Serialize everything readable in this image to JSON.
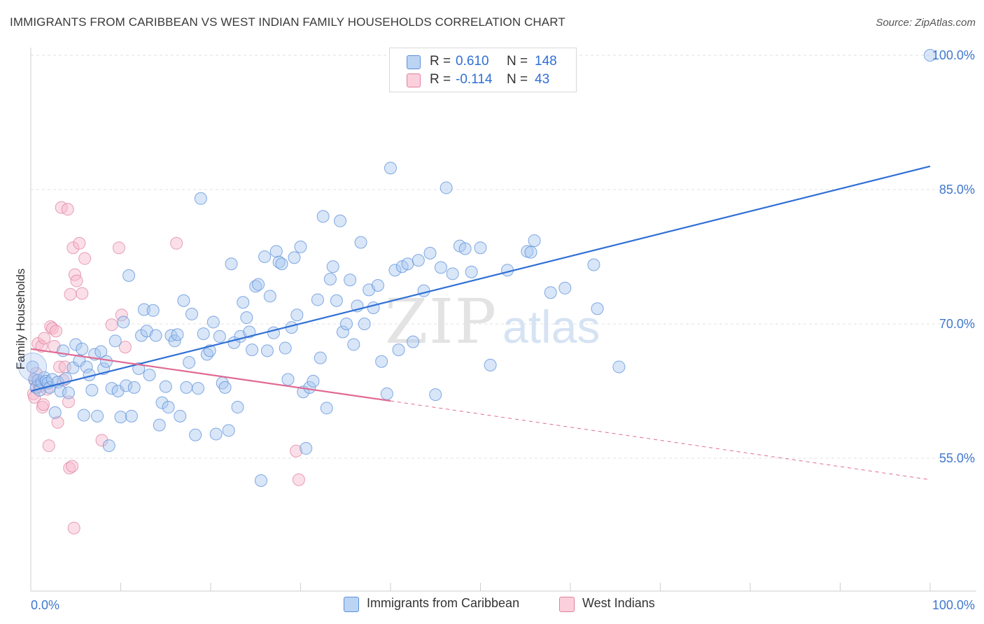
{
  "title": "IMMIGRANTS FROM CARIBBEAN VS WEST INDIAN FAMILY HOUSEHOLDS CORRELATION CHART",
  "source": "Source: ZipAtlas.com",
  "watermark": {
    "zip": "ZIP",
    "atlas": "atlas"
  },
  "legend": {
    "rows": [
      {
        "r_label": "R =",
        "r_value": "0.610",
        "n_label": "N =",
        "n_value": "148"
      },
      {
        "r_label": "R =",
        "r_value": "-0.114",
        "n_label": "N =",
        "n_value": "43"
      }
    ]
  },
  "colors": {
    "blue_fill": "#a9c7f0",
    "blue_stroke": "#5b8fd9",
    "blue_line": "#2f6fd6",
    "pink_fill": "#f6b9cb",
    "pink_stroke": "#e0819f",
    "pink_line": "#e06a93",
    "tick_label": "#3f78cf",
    "grid": "#e2e2e2"
  },
  "chart_data": {
    "type": "scatter",
    "title": "IMMIGRANTS FROM CARIBBEAN VS WEST INDIAN FAMILY HOUSEHOLDS CORRELATION CHART",
    "xlabel": "",
    "ylabel": "Family Households",
    "xlim": [
      0,
      100
    ],
    "ylim": [
      40,
      102
    ],
    "x_tick_labels": [
      "0.0%",
      "100.0%"
    ],
    "y_ticks": [
      55,
      70,
      85,
      100
    ],
    "y_tick_labels": [
      "55.0%",
      "70.0%",
      "85.0%",
      "100.0%"
    ],
    "grid": true,
    "legend_position": "top-center",
    "series": [
      {
        "name": "Immigrants from Caribbean",
        "color": "#a9c7f0",
        "trend": {
          "x": [
            0,
            100
          ],
          "y": [
            62.5,
            87.6
          ],
          "dashed_from": null
        },
        "points": [
          [
            0.2,
            65.2
          ],
          [
            0.4,
            63.8
          ],
          [
            0.6,
            62.9
          ],
          [
            0.8,
            63.7
          ],
          [
            1.0,
            62.6
          ],
          [
            1.2,
            63.5
          ],
          [
            1.5,
            64.0
          ],
          [
            1.7,
            63.6
          ],
          [
            1.9,
            63.4
          ],
          [
            2.1,
            62.9
          ],
          [
            2.4,
            63.8
          ],
          [
            2.7,
            60.1
          ],
          [
            3.0,
            63.5
          ],
          [
            3.3,
            62.5
          ],
          [
            3.6,
            67.0
          ],
          [
            3.9,
            63.9
          ],
          [
            4.2,
            62.3
          ],
          [
            4.7,
            65.1
          ],
          [
            5.0,
            67.7
          ],
          [
            5.4,
            65.9
          ],
          [
            5.7,
            67.2
          ],
          [
            5.9,
            59.8
          ],
          [
            6.2,
            65.2
          ],
          [
            6.5,
            64.3
          ],
          [
            6.8,
            62.6
          ],
          [
            7.1,
            66.6
          ],
          [
            7.4,
            59.7
          ],
          [
            7.8,
            66.9
          ],
          [
            8.1,
            65.0
          ],
          [
            8.4,
            65.8
          ],
          [
            8.7,
            56.4
          ],
          [
            9.0,
            62.8
          ],
          [
            9.4,
            68.1
          ],
          [
            9.7,
            62.5
          ],
          [
            10.0,
            59.6
          ],
          [
            10.3,
            70.2
          ],
          [
            10.6,
            63.1
          ],
          [
            10.9,
            75.4
          ],
          [
            11.2,
            59.7
          ],
          [
            11.5,
            62.9
          ],
          [
            12.0,
            65.0
          ],
          [
            12.3,
            68.7
          ],
          [
            12.6,
            71.6
          ],
          [
            12.9,
            69.2
          ],
          [
            13.2,
            64.3
          ],
          [
            13.6,
            71.5
          ],
          [
            13.9,
            68.7
          ],
          [
            14.3,
            58.7
          ],
          [
            14.6,
            61.2
          ],
          [
            15.0,
            63.0
          ],
          [
            15.3,
            60.7
          ],
          [
            15.6,
            68.7
          ],
          [
            16.0,
            68.1
          ],
          [
            16.3,
            68.8
          ],
          [
            16.6,
            59.7
          ],
          [
            17.0,
            72.6
          ],
          [
            17.3,
            62.9
          ],
          [
            17.6,
            65.7
          ],
          [
            17.9,
            71.1
          ],
          [
            18.3,
            57.6
          ],
          [
            18.6,
            62.8
          ],
          [
            18.9,
            84.0
          ],
          [
            19.2,
            68.9
          ],
          [
            19.6,
            66.6
          ],
          [
            19.9,
            67.0
          ],
          [
            20.3,
            70.2
          ],
          [
            20.6,
            57.7
          ],
          [
            21.0,
            68.6
          ],
          [
            21.3,
            63.4
          ],
          [
            21.6,
            62.9
          ],
          [
            22.0,
            58.1
          ],
          [
            22.3,
            76.7
          ],
          [
            22.6,
            67.9
          ],
          [
            23.0,
            60.7
          ],
          [
            23.3,
            68.6
          ],
          [
            23.6,
            72.4
          ],
          [
            24.0,
            70.7
          ],
          [
            24.3,
            69.1
          ],
          [
            24.6,
            67.1
          ],
          [
            25.0,
            74.2
          ],
          [
            25.3,
            74.4
          ],
          [
            25.6,
            52.5
          ],
          [
            26.0,
            77.5
          ],
          [
            26.3,
            67.0
          ],
          [
            26.6,
            73.1
          ],
          [
            27.0,
            69.0
          ],
          [
            27.3,
            78.1
          ],
          [
            27.6,
            76.9
          ],
          [
            27.9,
            76.7
          ],
          [
            28.3,
            67.3
          ],
          [
            28.6,
            63.8
          ],
          [
            29.0,
            69.6
          ],
          [
            29.3,
            77.4
          ],
          [
            29.6,
            71.0
          ],
          [
            30.0,
            78.6
          ],
          [
            30.3,
            62.4
          ],
          [
            30.6,
            56.1
          ],
          [
            31.0,
            62.9
          ],
          [
            31.4,
            63.6
          ],
          [
            31.9,
            72.7
          ],
          [
            32.2,
            66.2
          ],
          [
            32.5,
            82.0
          ],
          [
            32.9,
            60.6
          ],
          [
            33.3,
            75.0
          ],
          [
            33.6,
            76.4
          ],
          [
            34.0,
            72.6
          ],
          [
            34.4,
            81.5
          ],
          [
            34.7,
            69.1
          ],
          [
            35.1,
            70.0
          ],
          [
            35.5,
            74.9
          ],
          [
            35.9,
            67.7
          ],
          [
            36.3,
            72.0
          ],
          [
            36.7,
            79.1
          ],
          [
            37.1,
            70.0
          ],
          [
            37.6,
            73.8
          ],
          [
            38.1,
            71.8
          ],
          [
            38.6,
            74.3
          ],
          [
            39.0,
            65.8
          ],
          [
            39.6,
            62.2
          ],
          [
            40.0,
            87.4
          ],
          [
            40.5,
            76.0
          ],
          [
            40.9,
            67.1
          ],
          [
            41.3,
            76.4
          ],
          [
            41.9,
            76.7
          ],
          [
            42.5,
            68.0
          ],
          [
            43.1,
            77.1
          ],
          [
            43.7,
            73.7
          ],
          [
            44.4,
            77.9
          ],
          [
            45.0,
            62.1
          ],
          [
            45.6,
            76.3
          ],
          [
            46.2,
            85.2
          ],
          [
            46.9,
            75.6
          ],
          [
            47.7,
            78.7
          ],
          [
            48.3,
            78.4
          ],
          [
            49.0,
            75.8
          ],
          [
            50.0,
            78.5
          ],
          [
            51.1,
            65.4
          ],
          [
            53.0,
            76.0
          ],
          [
            55.2,
            78.1
          ],
          [
            55.6,
            78.0
          ],
          [
            56.0,
            79.3
          ],
          [
            57.8,
            73.5
          ],
          [
            59.4,
            74.0
          ],
          [
            62.6,
            76.6
          ],
          [
            63.0,
            71.7
          ],
          [
            65.4,
            65.2
          ],
          [
            100,
            100.0
          ]
        ]
      },
      {
        "name": "West Indians",
        "color": "#f6b9cb",
        "trend": {
          "x": [
            0,
            40
          ],
          "y": [
            67.2,
            61.4
          ],
          "dashed_from": 40,
          "x_end": 100,
          "y_end": 52.6
        },
        "points": [
          [
            0.3,
            62.2
          ],
          [
            0.4,
            61.8
          ],
          [
            0.5,
            63.6
          ],
          [
            0.6,
            64.5
          ],
          [
            0.8,
            67.8
          ],
          [
            1.0,
            63.0
          ],
          [
            1.2,
            67.5
          ],
          [
            1.3,
            60.7
          ],
          [
            1.4,
            61.0
          ],
          [
            1.5,
            68.4
          ],
          [
            1.8,
            62.7
          ],
          [
            2.0,
            56.4
          ],
          [
            2.2,
            69.7
          ],
          [
            2.4,
            69.5
          ],
          [
            2.6,
            67.5
          ],
          [
            2.8,
            69.2
          ],
          [
            3.0,
            59.0
          ],
          [
            3.2,
            65.2
          ],
          [
            3.4,
            83.0
          ],
          [
            3.6,
            63.7
          ],
          [
            3.8,
            65.2
          ],
          [
            4.1,
            82.8
          ],
          [
            4.2,
            61.3
          ],
          [
            4.3,
            53.9
          ],
          [
            4.4,
            73.3
          ],
          [
            4.6,
            54.1
          ],
          [
            4.7,
            78.5
          ],
          [
            4.8,
            47.2
          ],
          [
            4.9,
            75.5
          ],
          [
            5.1,
            74.8
          ],
          [
            5.4,
            79.0
          ],
          [
            5.7,
            73.4
          ],
          [
            6.0,
            77.3
          ],
          [
            7.9,
            57.0
          ],
          [
            9.0,
            69.9
          ],
          [
            9.8,
            78.5
          ],
          [
            10.1,
            71.0
          ],
          [
            10.5,
            67.4
          ],
          [
            16.2,
            79.0
          ],
          [
            29.5,
            55.8
          ],
          [
            29.8,
            52.6
          ]
        ]
      }
    ]
  }
}
